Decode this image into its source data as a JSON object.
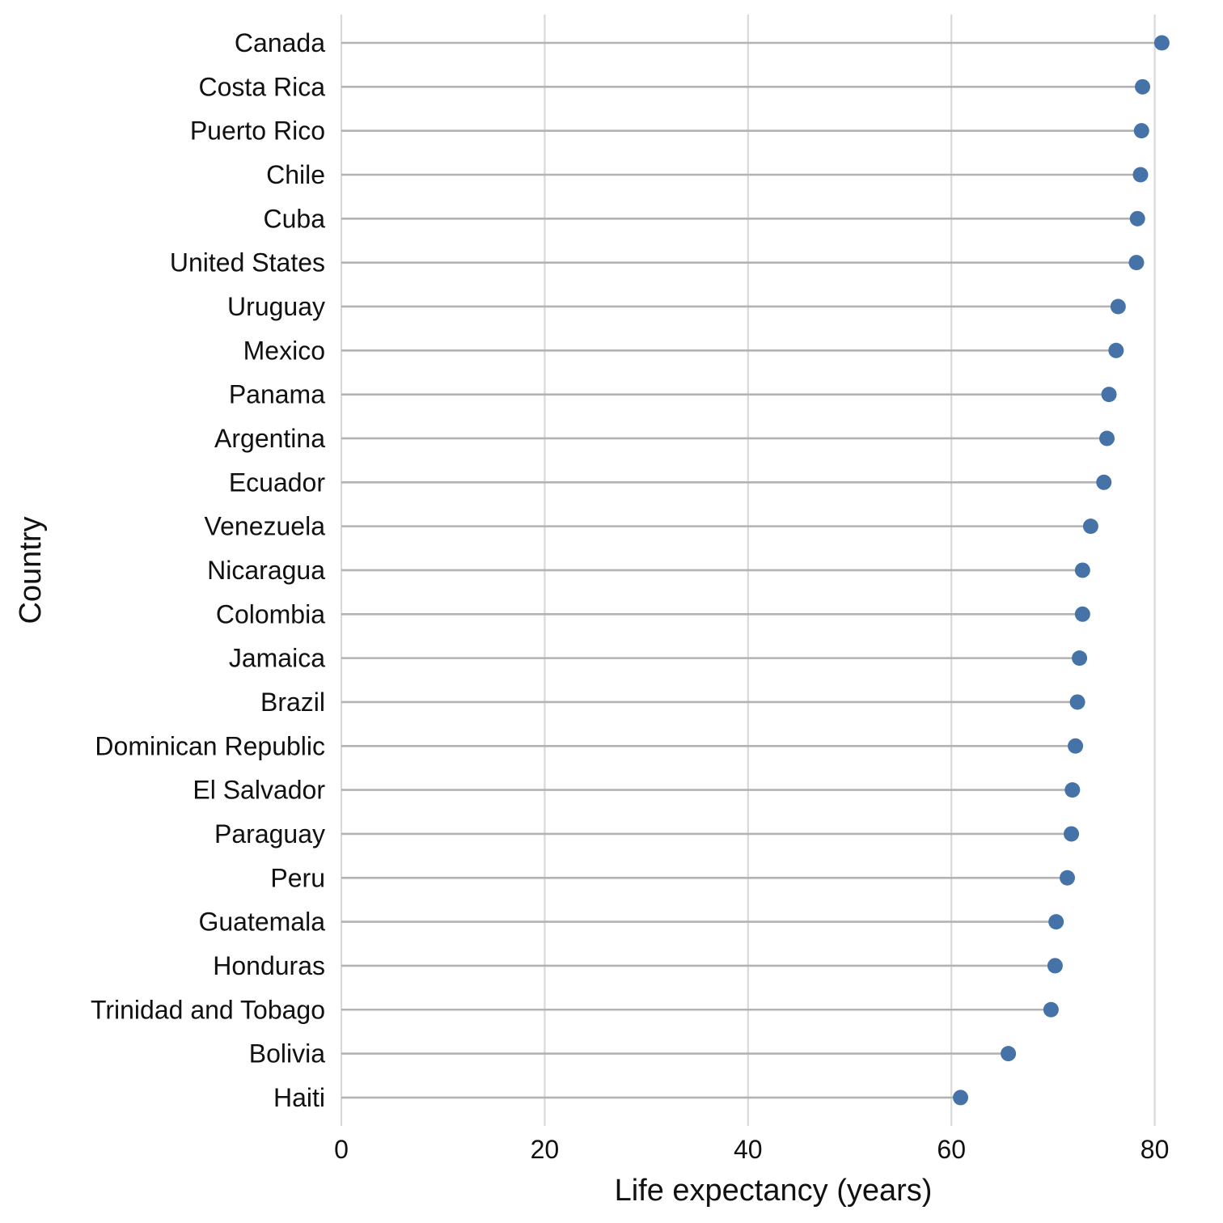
{
  "chart_data": {
    "type": "scatter",
    "style": "lollipop",
    "xlabel": "Life expectancy (years)",
    "ylabel": "Country",
    "xlim": [
      0,
      81
    ],
    "xticks": [
      0,
      20,
      40,
      60,
      80
    ],
    "grid": "vertical major gridlines",
    "colors": {
      "point": "#4573a7",
      "stem": "#b3b3b3",
      "grid": "#d9d9d9"
    },
    "categories": [
      "Canada",
      "Costa Rica",
      "Puerto Rico",
      "Chile",
      "Cuba",
      "United States",
      "Uruguay",
      "Mexico",
      "Panama",
      "Argentina",
      "Ecuador",
      "Venezuela",
      "Nicaragua",
      "Colombia",
      "Jamaica",
      "Brazil",
      "Dominican Republic",
      "El Salvador",
      "Paraguay",
      "Peru",
      "Guatemala",
      "Honduras",
      "Trinidad and Tobago",
      "Bolivia",
      "Haiti"
    ],
    "values": [
      80.7,
      78.8,
      78.7,
      78.6,
      78.3,
      78.2,
      76.4,
      76.2,
      75.5,
      75.3,
      75.0,
      73.7,
      72.9,
      72.9,
      72.6,
      72.4,
      72.2,
      71.9,
      71.8,
      71.4,
      70.3,
      70.2,
      69.8,
      65.6,
      60.9
    ]
  }
}
